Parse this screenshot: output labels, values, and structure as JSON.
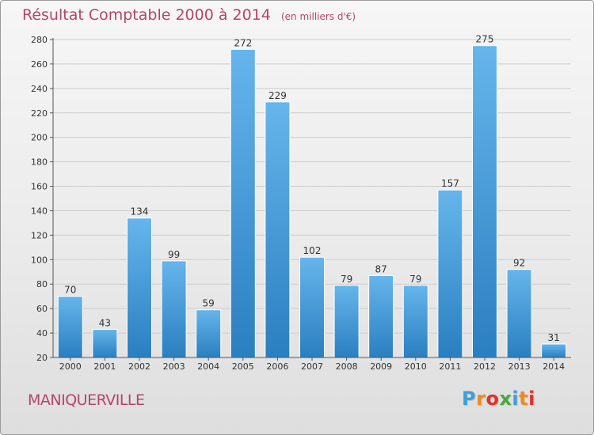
{
  "header": {
    "title": "Résultat Comptable 2000 à 2014",
    "subtitle": "(en milliers d'€)"
  },
  "footer": {
    "commune": "MANIQUERVILLE",
    "logo_letters": [
      "P",
      "r",
      "o",
      "x",
      "i",
      "t",
      "i"
    ],
    "logo_colors": [
      "#3aa0dc",
      "#f08a1c",
      "#e4312b",
      "#4aa83c",
      "#3aa0dc",
      "#f08a1c",
      "#e4312b"
    ]
  },
  "colors": {
    "title": "#b5456a",
    "bar_light": "#66b5ec",
    "bar_dark": "#2a7fc0",
    "grid": "#cccccc",
    "axis": "#555555"
  },
  "chart_data": {
    "type": "bar",
    "categories": [
      "2000",
      "2001",
      "2002",
      "2003",
      "2004",
      "2005",
      "2006",
      "2007",
      "2008",
      "2009",
      "2010",
      "2011",
      "2012",
      "2013",
      "2014"
    ],
    "values": [
      70,
      43,
      134,
      99,
      59,
      272,
      229,
      102,
      79,
      87,
      79,
      157,
      275,
      92,
      31
    ],
    "ylim": [
      20,
      280
    ],
    "yticks": [
      20,
      40,
      60,
      80,
      100,
      120,
      140,
      160,
      180,
      200,
      220,
      240,
      260,
      280
    ],
    "grid": true,
    "data_labels": true
  }
}
